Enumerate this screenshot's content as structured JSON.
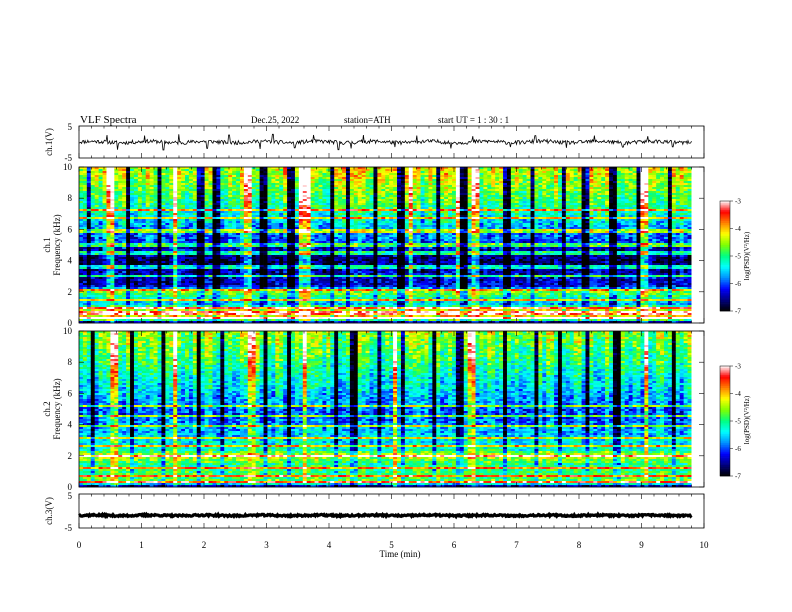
{
  "header": {
    "title": "VLF  Spectra",
    "date": "Dec.25, 2022",
    "station": "station=ATH",
    "start": "start  UT  =    1  : 30 : 1"
  },
  "colors": {
    "spectrogram_palette": [
      "#000000",
      "#000080",
      "#0000ff",
      "#0090ff",
      "#00ffff",
      "#00ff80",
      "#80ff00",
      "#ffff00",
      "#ff8000",
      "#ff0000",
      "#ffffff"
    ]
  },
  "chart_data": [
    {
      "type": "line",
      "panel": "ch.1 waveform",
      "ylabel": "ch.1(V)",
      "ylim": [
        -5,
        5
      ],
      "yticks": [
        5,
        -5
      ],
      "x_range": [
        0,
        9.8
      ],
      "mean_value": 0,
      "noise_amplitude": 0.6,
      "spikes": [
        [
          0.45,
          2.2
        ],
        [
          0.62,
          -2.4
        ],
        [
          1.05,
          2.0
        ],
        [
          1.35,
          -2.5
        ],
        [
          1.6,
          2.4
        ],
        [
          2.05,
          -2.0
        ],
        [
          2.4,
          2.2
        ],
        [
          2.9,
          -2.2
        ],
        [
          3.1,
          2.4
        ],
        [
          3.45,
          -1.8
        ],
        [
          3.75,
          2.2
        ],
        [
          4.15,
          -2.4
        ],
        [
          4.35,
          -2.0
        ],
        [
          4.55,
          2.2
        ],
        [
          5.05,
          -1.6
        ],
        [
          5.4,
          2.0
        ],
        [
          5.95,
          -2.0
        ],
        [
          6.3,
          1.8
        ],
        [
          6.9,
          -1.6
        ],
        [
          7.3,
          2.0
        ],
        [
          7.8,
          -1.8
        ],
        [
          8.25,
          2.0
        ],
        [
          8.7,
          -1.6
        ],
        [
          9.1,
          1.8
        ],
        [
          9.5,
          -1.5
        ]
      ]
    },
    {
      "type": "heatmap",
      "panel": "ch.1 spectrogram",
      "ylabel_top": "ch.1",
      "ylabel": "Frequency  (kHz)",
      "ylim": [
        0,
        10
      ],
      "yticks": [
        0,
        2,
        4,
        6,
        8,
        10
      ],
      "x_range": [
        0,
        9.8
      ],
      "value_label": "log(PSD)(V²/Hz)",
      "value_range": [
        -7,
        -3
      ],
      "colorbar_ticks": [
        -3,
        -4,
        -5,
        -6,
        -7
      ],
      "band_profile": [
        [
          0.0,
          -7.0
        ],
        [
          0.3,
          -3.8
        ],
        [
          0.6,
          -4.4
        ],
        [
          0.9,
          -4.2
        ],
        [
          1.2,
          -5.6
        ],
        [
          1.6,
          -5.2
        ],
        [
          2.0,
          -4.6
        ],
        [
          2.4,
          -6.4
        ],
        [
          3.0,
          -6.3
        ],
        [
          3.6,
          -6.6
        ],
        [
          4.0,
          -6.7
        ],
        [
          4.6,
          -6.4
        ],
        [
          5.2,
          -6.0
        ],
        [
          5.8,
          -5.8
        ],
        [
          6.4,
          -5.5
        ],
        [
          7.0,
          -5.2
        ],
        [
          7.6,
          -5.0
        ],
        [
          8.2,
          -4.8
        ],
        [
          8.8,
          -4.6
        ],
        [
          9.4,
          -4.4
        ],
        [
          10.0,
          -4.3
        ]
      ],
      "horizontal_lines_khz": [
        0.35,
        0.65,
        1.0,
        1.45,
        2.15,
        3.05,
        3.6,
        4.5,
        5.0,
        5.9,
        6.7,
        7.2
      ],
      "bright_columns_min": [
        0.5,
        1.55,
        2.7,
        3.55,
        3.65,
        5.3,
        6.05,
        6.35,
        9.05
      ],
      "dark_columns_min": [
        0.15,
        0.8,
        1.3,
        1.95,
        2.2,
        2.95,
        3.4,
        4.05,
        4.3,
        4.75,
        5.15,
        5.75,
        6.15,
        6.85,
        7.25,
        7.75,
        8.1,
        8.55,
        8.95,
        9.45
      ]
    },
    {
      "type": "heatmap",
      "panel": "ch.2 spectrogram",
      "ylabel_top": "ch.2",
      "ylabel": "Frequency  (kHz)",
      "ylim": [
        0,
        10
      ],
      "yticks": [
        0,
        2,
        4,
        6,
        8,
        10
      ],
      "x_range": [
        0,
        9.8
      ],
      "value_label": "log(PSD)(V²/Hz)",
      "value_range": [
        -7,
        -3
      ],
      "colorbar_ticks": [
        -3,
        -4,
        -5,
        -6,
        -7
      ],
      "band_profile": [
        [
          0.0,
          -6.8
        ],
        [
          0.3,
          -4.6
        ],
        [
          0.6,
          -4.8
        ],
        [
          1.0,
          -4.9
        ],
        [
          1.5,
          -5.0
        ],
        [
          2.0,
          -4.2
        ],
        [
          2.4,
          -5.2
        ],
        [
          3.0,
          -5.4
        ],
        [
          3.6,
          -5.6
        ],
        [
          4.2,
          -5.8
        ],
        [
          4.6,
          -6.0
        ],
        [
          5.2,
          -5.8
        ],
        [
          5.8,
          -5.6
        ],
        [
          6.4,
          -5.4
        ],
        [
          7.0,
          -5.3
        ],
        [
          7.6,
          -5.1
        ],
        [
          8.2,
          -4.9
        ],
        [
          8.8,
          -4.8
        ],
        [
          9.4,
          -4.6
        ],
        [
          10.0,
          -4.5
        ]
      ],
      "horizontal_lines_khz": [
        0.3,
        0.7,
        1.2,
        2.0,
        2.6,
        3.1,
        3.9,
        4.6,
        5.2
      ],
      "bright_columns_min": [
        0.55,
        1.55,
        2.75,
        3.6,
        5.05,
        6.3,
        9.05
      ],
      "dark_columns_min": [
        0.2,
        0.85,
        1.35,
        1.9,
        2.3,
        3.0,
        3.35,
        4.1,
        4.4,
        4.8,
        5.2,
        5.7,
        6.1,
        6.8,
        7.3,
        7.7,
        8.15,
        8.6,
        9.0,
        9.5
      ]
    },
    {
      "type": "line",
      "panel": "ch.3 waveform",
      "ylabel": "ch.3(V)",
      "ylim": [
        -5,
        5
      ],
      "yticks": [
        5,
        -5
      ],
      "x_range": [
        0,
        9.8
      ],
      "mean_value": -1.3,
      "noise_amplitude": 0.25,
      "spikes": [],
      "xlabel": "Time  (min)",
      "xlim": [
        0,
        10
      ],
      "xticks": [
        0,
        1,
        2,
        3,
        4,
        5,
        6,
        7,
        8,
        9,
        10
      ]
    }
  ]
}
